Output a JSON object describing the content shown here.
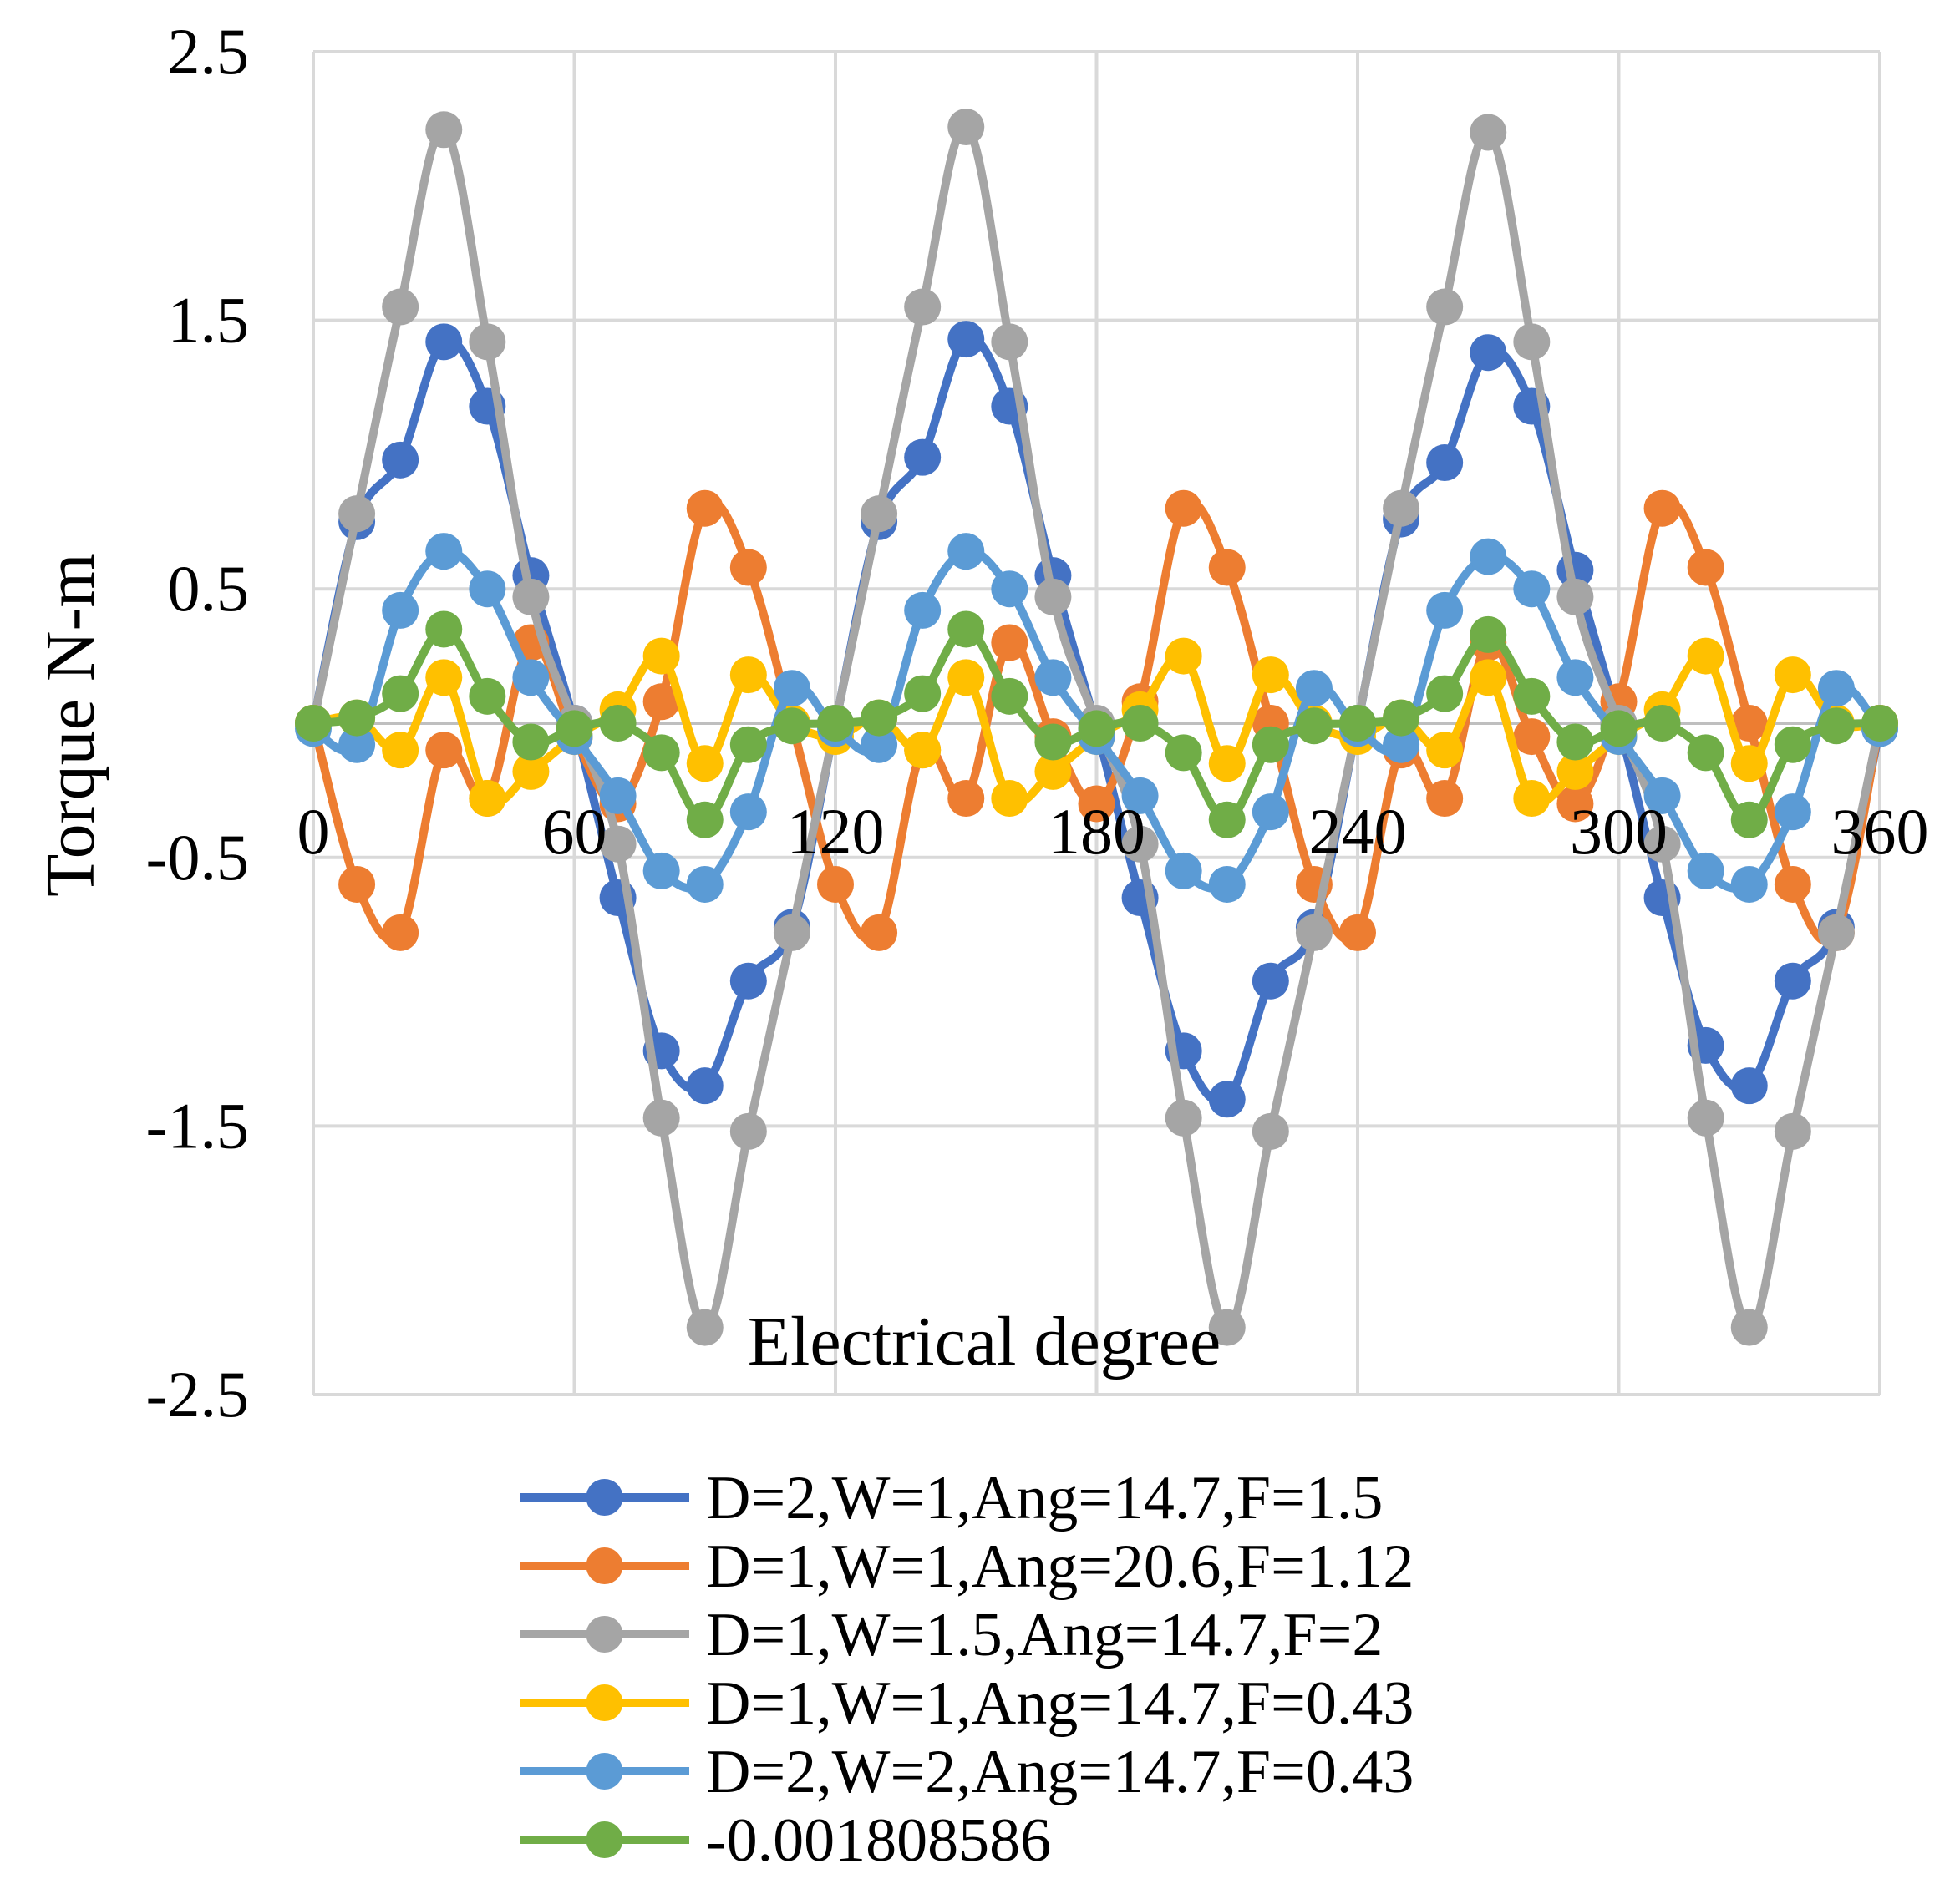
{
  "chart_data": {
    "type": "line",
    "title": "",
    "xlabel": "Electrical degree",
    "ylabel": "Torque N-m",
    "xlim": [
      0,
      360
    ],
    "ylim": [
      -2.5,
      2.5
    ],
    "grid": true,
    "legend_position": "bottom",
    "x_ticks": [
      0,
      60,
      120,
      180,
      240,
      300,
      360
    ],
    "x_tick_labels": [
      "0",
      "60",
      "120",
      "180",
      "240",
      "300",
      "360"
    ],
    "y_ticks": [
      2.5,
      1.5,
      0.5,
      -0.5,
      -1.5,
      -2.5
    ],
    "y_tick_labels": [
      "2.5",
      "1.5",
      "0.5",
      "-0.5",
      "-1.5",
      "-2.5"
    ],
    "x": [
      0,
      10,
      20,
      30,
      40,
      50,
      60,
      70,
      80,
      90,
      100,
      110,
      120,
      130,
      140,
      150,
      160,
      170,
      180,
      190,
      200,
      210,
      220,
      230,
      240,
      250,
      260,
      270,
      280,
      290,
      300,
      310,
      320,
      330,
      340,
      350,
      360
    ],
    "series": [
      {
        "name": "D=2,W=1,Ang=14.7,F=1.5",
        "color": "#4472C4",
        "values": [
          0.0,
          0.75,
          0.98,
          1.42,
          1.18,
          0.55,
          0.0,
          -0.65,
          -1.22,
          -1.35,
          -0.96,
          -0.76,
          0.0,
          0.75,
          0.99,
          1.43,
          1.18,
          0.55,
          -0.02,
          -0.65,
          -1.22,
          -1.4,
          -0.96,
          -0.76,
          0.0,
          0.76,
          0.97,
          1.38,
          1.18,
          0.57,
          0.0,
          -0.65,
          -1.2,
          -1.35,
          -0.96,
          -0.76,
          -0.02
        ]
      },
      {
        "name": "D=1,W=1,Ang=20.6,F=1.12",
        "color": "#ED7D31",
        "values": [
          0.0,
          -0.6,
          -0.78,
          -0.1,
          -0.28,
          0.3,
          -0.05,
          -0.3,
          0.08,
          0.8,
          0.58,
          0.0,
          -0.6,
          -0.78,
          -0.1,
          -0.28,
          0.3,
          -0.05,
          -0.3,
          0.08,
          0.8,
          0.58,
          0.0,
          -0.6,
          -0.78,
          -0.1,
          -0.28,
          0.3,
          -0.05,
          -0.3,
          0.08,
          0.8,
          0.58,
          0.0,
          -0.6,
          -0.78,
          0.0
        ]
      },
      {
        "name": "D=1,W=1.5,Ang=14.7,F=2",
        "color": "#A5A5A5",
        "values": [
          0.0,
          0.78,
          1.55,
          2.21,
          1.42,
          0.47,
          0.0,
          -0.45,
          -1.47,
          -2.25,
          -1.52,
          -0.78,
          0.0,
          0.78,
          1.55,
          2.22,
          1.42,
          0.47,
          0.0,
          -0.45,
          -1.47,
          -2.25,
          -1.52,
          -0.78,
          0.0,
          0.8,
          1.55,
          2.2,
          1.42,
          0.47,
          0.0,
          -0.45,
          -1.47,
          -2.25,
          -1.52,
          -0.78,
          0.0
        ]
      },
      {
        "name": "D=1,W=1,Ang=14.7,F=0.43",
        "color": "#FFC000",
        "values": [
          0.0,
          0.02,
          -0.1,
          0.17,
          -0.28,
          -0.18,
          -0.05,
          0.05,
          0.25,
          -0.15,
          0.18,
          0.0,
          -0.05,
          0.02,
          -0.1,
          0.17,
          -0.28,
          -0.18,
          -0.05,
          0.05,
          0.25,
          -0.15,
          0.18,
          0.0,
          -0.05,
          0.02,
          -0.1,
          0.17,
          -0.28,
          -0.18,
          -0.05,
          0.05,
          0.25,
          -0.15,
          0.18,
          0.0,
          0.0
        ]
      },
      {
        "name": "D=2,W=2,Ang=14.7,F=0.43",
        "color": "#5B9BD5",
        "values": [
          -0.02,
          -0.08,
          0.42,
          0.64,
          0.5,
          0.17,
          -0.05,
          -0.27,
          -0.55,
          -0.6,
          -0.33,
          0.13,
          -0.02,
          -0.08,
          0.42,
          0.64,
          0.5,
          0.17,
          -0.05,
          -0.27,
          -0.55,
          -0.6,
          -0.33,
          0.13,
          -0.02,
          -0.08,
          0.42,
          0.62,
          0.5,
          0.17,
          -0.05,
          -0.27,
          -0.55,
          -0.6,
          -0.33,
          0.13,
          -0.02
        ]
      },
      {
        "name": "-0.001808586",
        "color": "#70AD47",
        "values": [
          0.0,
          0.02,
          0.11,
          0.35,
          0.1,
          -0.07,
          -0.02,
          0.0,
          -0.11,
          -0.36,
          -0.08,
          -0.01,
          0.0,
          0.02,
          0.11,
          0.35,
          0.1,
          -0.07,
          -0.02,
          0.0,
          -0.11,
          -0.36,
          -0.08,
          -0.01,
          0.0,
          0.02,
          0.11,
          0.33,
          0.1,
          -0.07,
          -0.02,
          0.0,
          -0.11,
          -0.36,
          -0.08,
          -0.01,
          0.0
        ]
      }
    ]
  }
}
